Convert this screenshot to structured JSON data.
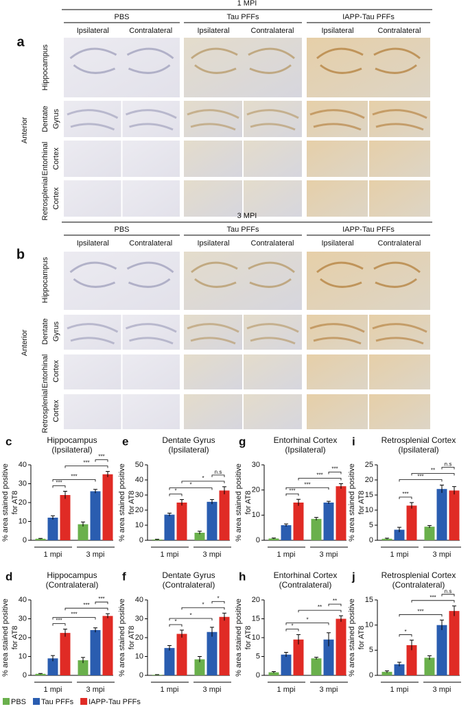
{
  "panels": [
    {
      "letter": "a",
      "title": "1 MPI",
      "groups": [
        "PBS",
        "Tau PFFs",
        "IAPP-Tau PFFs"
      ],
      "sides": [
        "Ipsilateral",
        "Contralateral"
      ],
      "side_label": "Anterior",
      "rows": [
        [
          "Hippocampus"
        ],
        [
          "Dentate",
          "Gyrus"
        ],
        [
          "Entorhinal",
          "Cortex"
        ],
        [
          "Retrosplenial",
          "Cortex"
        ]
      ]
    },
    {
      "letter": "b",
      "title": "3 MPI",
      "groups": [
        "PBS",
        "Tau PFFs",
        "IAPP-Tau PFFs"
      ],
      "sides": [
        "Ipsilateral",
        "Contralateral"
      ],
      "side_label": "Anterior",
      "rows": [
        [
          "Hippocampus"
        ],
        [
          "Dentate",
          "Gyrus"
        ],
        [
          "Entorhinal",
          "Cortex"
        ],
        [
          "Retrosplenial",
          "Cortex"
        ]
      ]
    }
  ],
  "legend": [
    {
      "name": "PBS",
      "color": "#6ab04c"
    },
    {
      "name": "Tau PFFs",
      "color": "#2a5db0"
    },
    {
      "name": "IAPP-Tau PFFs",
      "color": "#e02b25"
    }
  ],
  "chart_data": [
    {
      "type": "bar",
      "panel": "c",
      "title": "Hippocampus",
      "subtitle": "(Ipsilateral)",
      "ylabel": [
        "% area stained positive",
        "for AT8"
      ],
      "categories": [
        "1 mpi",
        "3 mpi"
      ],
      "series": [
        {
          "values": [
            0.8,
            8.5
          ],
          "errors": [
            0.2,
            1.2
          ]
        },
        {
          "values": [
            12,
            26
          ],
          "errors": [
            1,
            1
          ]
        },
        {
          "values": [
            24,
            35
          ],
          "errors": [
            2,
            1.5
          ]
        }
      ],
      "ylim": [
        0,
        40
      ],
      "yticks": [
        0,
        10,
        20,
        30,
        40
      ],
      "annotations": [
        {
          "label": "***",
          "bars": [
            1,
            2
          ]
        },
        {
          "label": "***",
          "bars": [
            1,
            4
          ]
        },
        {
          "label": "***",
          "bars": [
            2,
            5
          ]
        },
        {
          "label": "***",
          "bars": [
            4,
            5
          ]
        }
      ]
    },
    {
      "type": "bar",
      "panel": "e",
      "title": "Dentate Gyrus",
      "subtitle": "(Ipsilateral)",
      "ylabel": [
        "% area stained positive",
        "for AT8"
      ],
      "categories": [
        "1 mpi",
        "3 mpi"
      ],
      "series": [
        {
          "values": [
            0.5,
            5
          ],
          "errors": [
            0.2,
            1
          ]
        },
        {
          "values": [
            17,
            25.5
          ],
          "errors": [
            1,
            1.5
          ]
        },
        {
          "values": [
            25,
            33
          ],
          "errors": [
            2,
            2.5
          ]
        }
      ],
      "ylim": [
        0,
        50
      ],
      "yticks": [
        0,
        10,
        20,
        30,
        40,
        50
      ],
      "annotations": [
        {
          "label": "*",
          "bars": [
            1,
            2
          ]
        },
        {
          "label": "*",
          "bars": [
            1,
            4
          ]
        },
        {
          "label": "*",
          "bars": [
            2,
            5
          ]
        },
        {
          "label": "n.s",
          "bars": [
            4,
            5
          ]
        }
      ]
    },
    {
      "type": "bar",
      "panel": "g",
      "title": "Entorhinal Cortex",
      "subtitle": "(Ipsilateral)",
      "ylabel": [
        "% area stained positive",
        "for AT8"
      ],
      "categories": [
        "1 mpi",
        "3 mpi"
      ],
      "series": [
        {
          "values": [
            0.7,
            8.5
          ],
          "errors": [
            0.2,
            0.6
          ]
        },
        {
          "values": [
            6,
            15
          ],
          "errors": [
            0.5,
            0.5
          ]
        },
        {
          "values": [
            15,
            21.5
          ],
          "errors": [
            1.3,
            1
          ]
        }
      ],
      "ylim": [
        0,
        30
      ],
      "yticks": [
        0,
        10,
        20,
        30
      ],
      "annotations": [
        {
          "label": "***",
          "bars": [
            1,
            2
          ]
        },
        {
          "label": "***",
          "bars": [
            1,
            4
          ]
        },
        {
          "label": "***",
          "bars": [
            2,
            5
          ]
        },
        {
          "label": "***",
          "bars": [
            4,
            5
          ]
        }
      ]
    },
    {
      "type": "bar",
      "panel": "i",
      "title": "Retrosplenial Cortex",
      "subtitle": "(Ipsilateral)",
      "ylabel": [
        "% area stained positive",
        "for AT8"
      ],
      "categories": [
        "1 mpi",
        "3 mpi"
      ],
      "series": [
        {
          "values": [
            0.5,
            4.5
          ],
          "errors": [
            0.2,
            0.4
          ]
        },
        {
          "values": [
            3.5,
            17
          ],
          "errors": [
            0.8,
            1.3
          ]
        },
        {
          "values": [
            11.5,
            16.5
          ],
          "errors": [
            1,
            1.3
          ]
        }
      ],
      "ylim": [
        0,
        25
      ],
      "yticks": [
        0,
        5,
        10,
        15,
        20,
        25
      ],
      "annotations": [
        {
          "label": "***",
          "bars": [
            1,
            2
          ]
        },
        {
          "label": "***",
          "bars": [
            1,
            4
          ]
        },
        {
          "label": "**",
          "bars": [
            2,
            5
          ]
        },
        {
          "label": "n.s",
          "bars": [
            4,
            5
          ]
        }
      ]
    },
    {
      "type": "bar",
      "panel": "d",
      "title": "Hippocampus",
      "subtitle": "(Contralateral)",
      "ylabel": [
        "% area stained positive",
        "for AT8"
      ],
      "categories": [
        "1 mpi",
        "3 mpi"
      ],
      "series": [
        {
          "values": [
            0.8,
            8
          ],
          "errors": [
            0.2,
            1.5
          ]
        },
        {
          "values": [
            9,
            24
          ],
          "errors": [
            1.5,
            1.2
          ]
        },
        {
          "values": [
            22.5,
            31.5
          ],
          "errors": [
            2,
            1.2
          ]
        }
      ],
      "ylim": [
        0,
        40
      ],
      "yticks": [
        0,
        10,
        20,
        30,
        40
      ],
      "annotations": [
        {
          "label": "***",
          "bars": [
            1,
            2
          ]
        },
        {
          "label": "***",
          "bars": [
            1,
            4
          ]
        },
        {
          "label": "***",
          "bars": [
            2,
            5
          ]
        },
        {
          "label": "***",
          "bars": [
            4,
            5
          ]
        }
      ]
    },
    {
      "type": "bar",
      "panel": "f",
      "title": "Dentate Gyrus",
      "subtitle": "(Contralateral)",
      "ylabel": [
        "% area stained positive",
        "for AT8"
      ],
      "categories": [
        "1 mpi",
        "3 mpi"
      ],
      "series": [
        {
          "values": [
            0.3,
            8.5
          ],
          "errors": [
            0.1,
            1.5
          ]
        },
        {
          "values": [
            14.5,
            23
          ],
          "errors": [
            1.3,
            2.5
          ]
        },
        {
          "values": [
            22,
            31
          ],
          "errors": [
            2,
            2
          ]
        }
      ],
      "ylim": [
        0,
        40
      ],
      "yticks": [
        0,
        10,
        20,
        30,
        40
      ],
      "annotations": [
        {
          "label": "*",
          "bars": [
            1,
            2
          ]
        },
        {
          "label": "*",
          "bars": [
            1,
            4
          ]
        },
        {
          "label": "*",
          "bars": [
            2,
            5
          ]
        },
        {
          "label": "*",
          "bars": [
            4,
            5
          ]
        }
      ]
    },
    {
      "type": "bar",
      "panel": "h",
      "title": "Entorhinal Cortex",
      "subtitle": "(Contralateral)",
      "ylabel": [
        "% area stained positive",
        "for AT8"
      ],
      "categories": [
        "1 mpi",
        "3 mpi"
      ],
      "series": [
        {
          "values": [
            0.8,
            4.5
          ],
          "errors": [
            0.2,
            0.3
          ]
        },
        {
          "values": [
            5.5,
            9.5
          ],
          "errors": [
            0.6,
            1.8
          ]
        },
        {
          "values": [
            9.5,
            15
          ],
          "errors": [
            1.3,
            0.8
          ]
        }
      ],
      "ylim": [
        0,
        20
      ],
      "yticks": [
        0,
        5,
        10,
        15,
        20
      ],
      "annotations": [
        {
          "label": "*",
          "bars": [
            1,
            2
          ]
        },
        {
          "label": "*",
          "bars": [
            1,
            4
          ]
        },
        {
          "label": "**",
          "bars": [
            2,
            5
          ]
        },
        {
          "label": "**",
          "bars": [
            4,
            5
          ]
        }
      ]
    },
    {
      "type": "bar",
      "panel": "j",
      "title": "Retrosplenial Cortex",
      "subtitle": "(Contralateral)",
      "ylabel": [
        "% area stained positive",
        "for AT8"
      ],
      "categories": [
        "1 mpi",
        "3 mpi"
      ],
      "series": [
        {
          "values": [
            0.7,
            3.5
          ],
          "errors": [
            0.2,
            0.4
          ]
        },
        {
          "values": [
            2.2,
            10
          ],
          "errors": [
            0.4,
            1
          ]
        },
        {
          "values": [
            6,
            12.8
          ],
          "errors": [
            1,
            1
          ]
        }
      ],
      "ylim": [
        0,
        15
      ],
      "yticks": [
        0,
        5,
        10,
        15
      ],
      "annotations": [
        {
          "label": "*",
          "bars": [
            1,
            2
          ]
        },
        {
          "label": "***",
          "bars": [
            1,
            4
          ]
        },
        {
          "label": "***",
          "bars": [
            2,
            5
          ]
        },
        {
          "label": "n.s",
          "bars": [
            4,
            5
          ]
        }
      ]
    }
  ]
}
